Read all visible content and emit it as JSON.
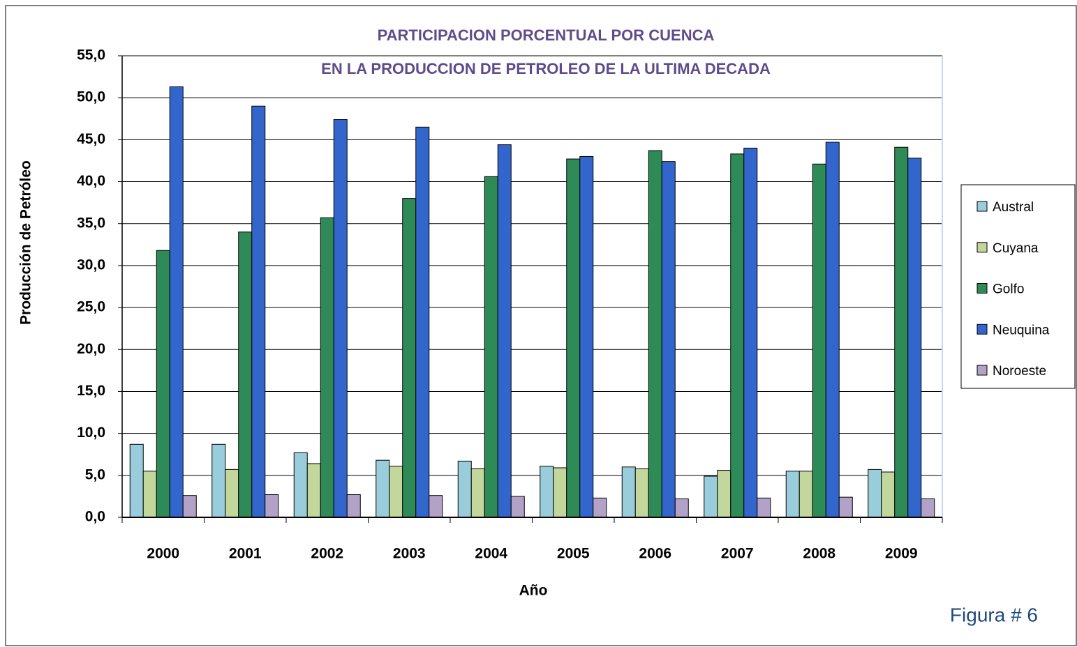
{
  "chart_data": {
    "type": "bar",
    "title": "PARTICIPACION PORCENTUAL POR CUENCA",
    "subtitle": "EN LA PRODUCCION DE PETROLEO DE LA ULTIMA DECADA",
    "x_label": "Año",
    "y_label": "Producción de Petróleo",
    "annotation": "Figura # 6",
    "categories": [
      "2000",
      "2001",
      "2002",
      "2003",
      "2004",
      "2005",
      "2006",
      "2007",
      "2008",
      "2009"
    ],
    "series": [
      {
        "name": "Austral",
        "color": "#99cddb",
        "values": [
          8.7,
          8.7,
          7.7,
          6.8,
          6.7,
          6.1,
          6.0,
          4.9,
          5.5,
          5.7
        ]
      },
      {
        "name": "Cuyana",
        "color": "#c3d69b",
        "values": [
          5.5,
          5.7,
          6.4,
          6.1,
          5.8,
          5.9,
          5.8,
          5.6,
          5.5,
          5.4
        ]
      },
      {
        "name": "Golfo",
        "color": "#2e8b57",
        "values": [
          31.8,
          34.0,
          35.7,
          38.0,
          40.6,
          42.7,
          43.7,
          43.3,
          42.1,
          44.1
        ]
      },
      {
        "name": "Neuquina",
        "color": "#3366cc",
        "values": [
          51.3,
          49.0,
          47.4,
          46.5,
          44.4,
          43.0,
          42.4,
          44.0,
          44.7,
          42.8
        ]
      },
      {
        "name": "Noroeste",
        "color": "#b3a2c7",
        "values": [
          2.6,
          2.7,
          2.7,
          2.6,
          2.5,
          2.3,
          2.2,
          2.3,
          2.4,
          2.2
        ]
      }
    ],
    "ylim": [
      0,
      55
    ],
    "yticks": [
      {
        "value": 0,
        "label": "0,0"
      },
      {
        "value": 5,
        "label": "5,0"
      },
      {
        "value": 10,
        "label": "10,0"
      },
      {
        "value": 15,
        "label": "15,0"
      },
      {
        "value": 20,
        "label": "20,0"
      },
      {
        "value": 25,
        "label": "25,0"
      },
      {
        "value": 30,
        "label": "30,0"
      },
      {
        "value": 35,
        "label": "35,0"
      },
      {
        "value": 40,
        "label": "40,0"
      },
      {
        "value": 45,
        "label": "45,0"
      },
      {
        "value": 50,
        "label": "50,0"
      },
      {
        "value": 55,
        "label": "55,0"
      }
    ],
    "grid": true,
    "legend": "right"
  }
}
